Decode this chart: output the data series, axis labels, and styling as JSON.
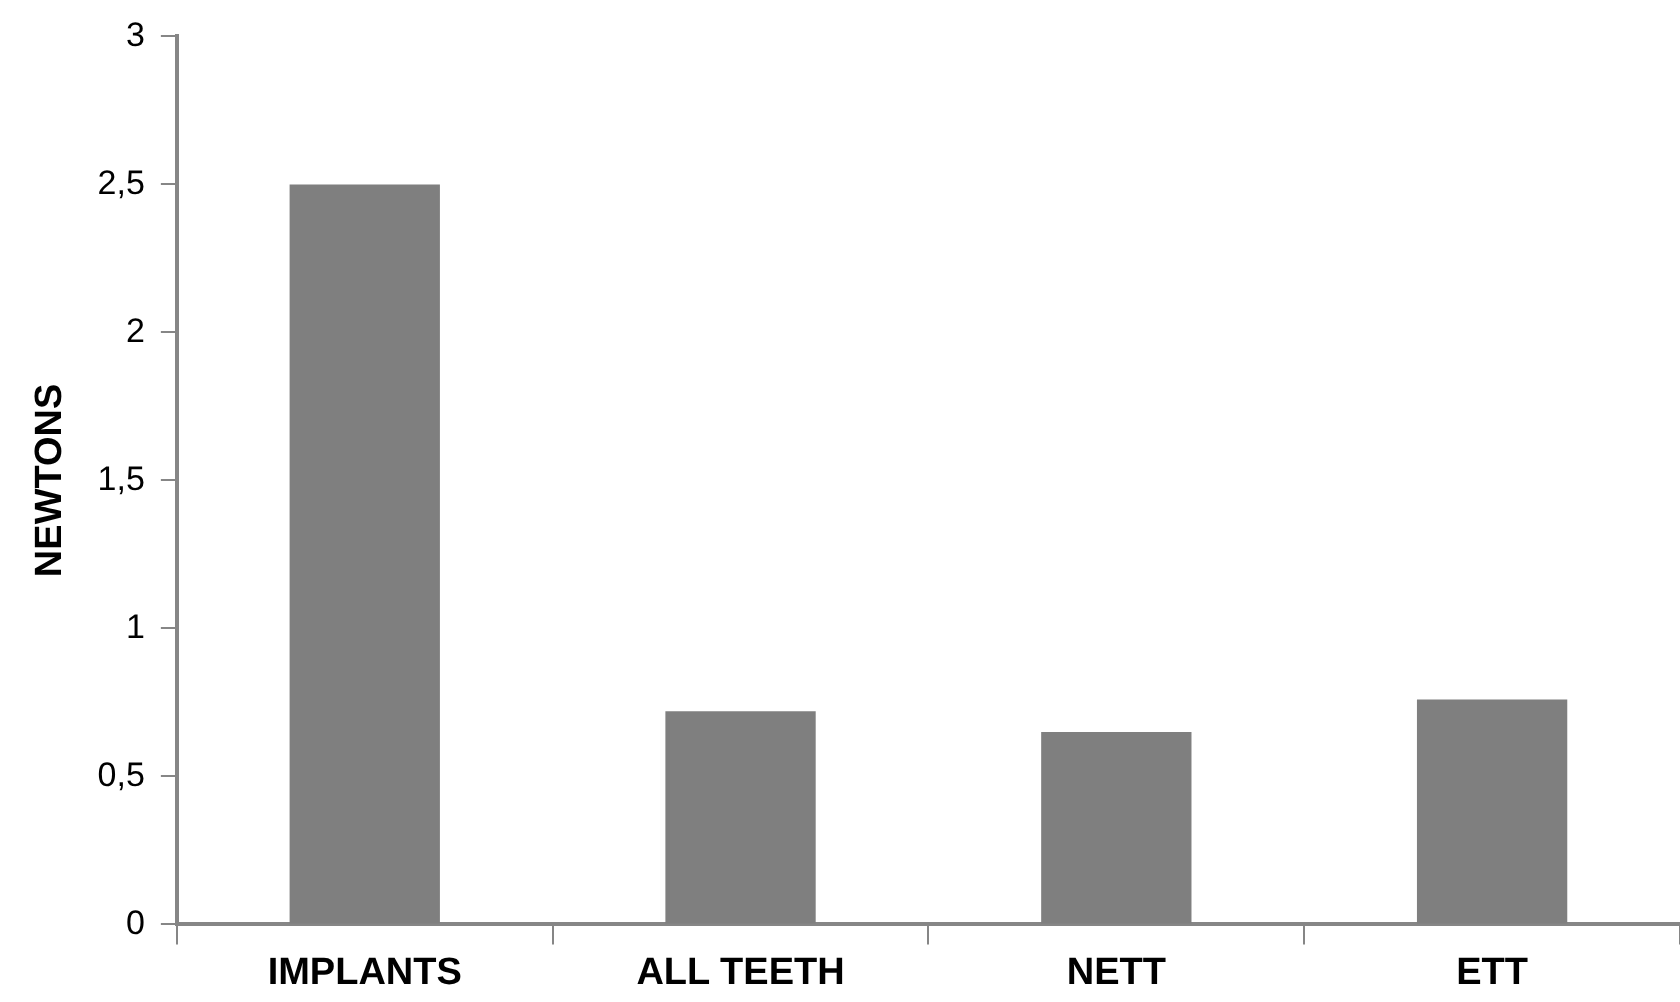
{
  "chart_data": {
    "type": "bar",
    "ylabel": "NEWTONS",
    "categories": [
      "IMPLANTS",
      "ALL TEETH",
      "NETT",
      "ETT"
    ],
    "values": [
      2.5,
      0.72,
      0.65,
      0.76
    ],
    "color": "#7f7f7f",
    "ylim": [
      0,
      3
    ],
    "yticks": [
      0,
      {
        "value": 0.5,
        "label": "0,5"
      },
      1,
      {
        "value": 1.5,
        "label": "1,5"
      },
      2,
      {
        "value": 2.5,
        "label": "2,5"
      },
      3
    ],
    "grid": false
  }
}
